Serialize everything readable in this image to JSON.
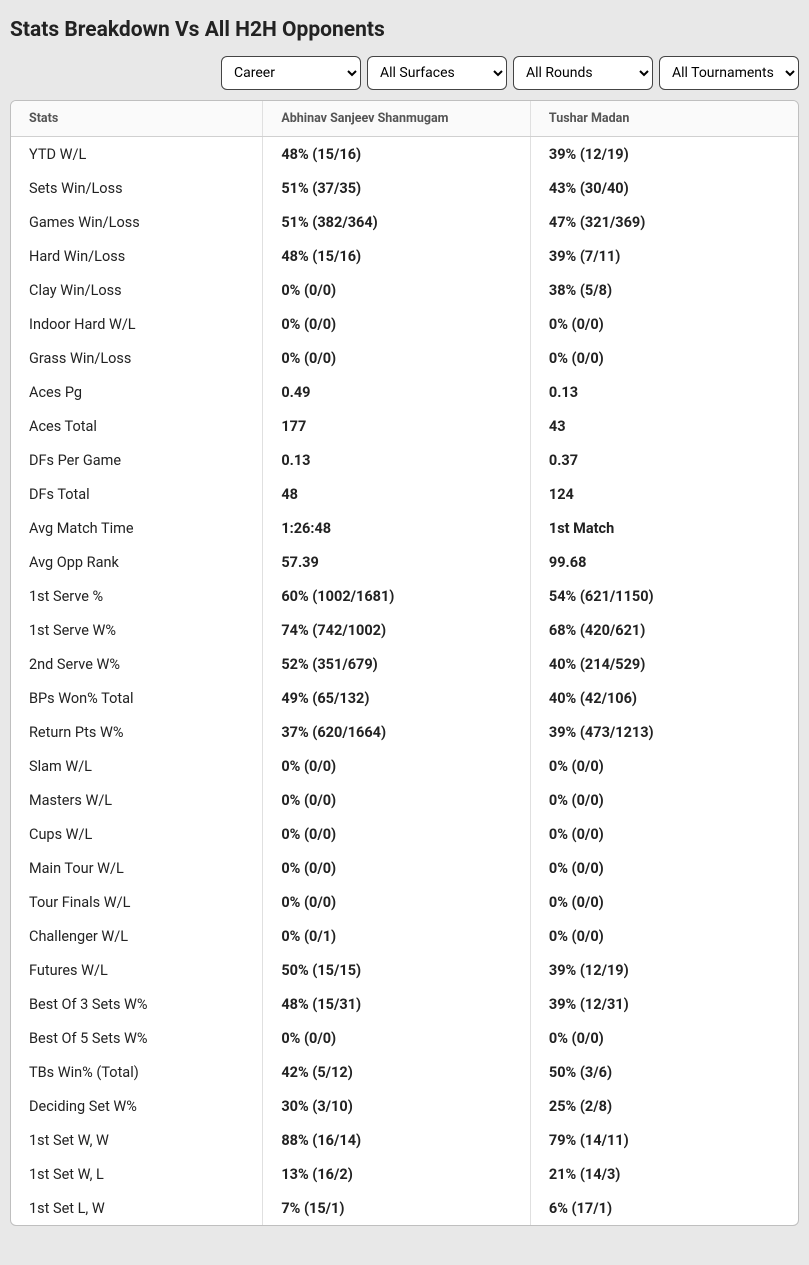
{
  "title": "Stats Breakdown Vs All H2H Opponents",
  "filters": {
    "career": "Career",
    "surfaces": "All Surfaces",
    "rounds": "All Rounds",
    "tournaments": "All Tournaments"
  },
  "headers": {
    "stats": "Stats",
    "player1": "Abhinav Sanjeev Shanmugam",
    "player2": "Tushar Madan"
  },
  "rows": [
    {
      "label": "YTD W/L",
      "p1": "48% (15/16)",
      "p2": "39% (12/19)"
    },
    {
      "label": "Sets Win/Loss",
      "p1": "51% (37/35)",
      "p2": "43% (30/40)"
    },
    {
      "label": "Games Win/Loss",
      "p1": "51% (382/364)",
      "p2": "47% (321/369)"
    },
    {
      "label": "Hard Win/Loss",
      "p1": "48% (15/16)",
      "p2": "39% (7/11)"
    },
    {
      "label": "Clay Win/Loss",
      "p1": "0% (0/0)",
      "p2": "38% (5/8)"
    },
    {
      "label": "Indoor Hard W/L",
      "p1": "0% (0/0)",
      "p2": "0% (0/0)"
    },
    {
      "label": "Grass Win/Loss",
      "p1": "0% (0/0)",
      "p2": "0% (0/0)"
    },
    {
      "label": "Aces Pg",
      "p1": "0.49",
      "p2": "0.13"
    },
    {
      "label": "Aces Total",
      "p1": "177",
      "p2": "43"
    },
    {
      "label": "DFs Per Game",
      "p1": "0.13",
      "p2": "0.37"
    },
    {
      "label": "DFs Total",
      "p1": "48",
      "p2": "124"
    },
    {
      "label": "Avg Match Time",
      "p1": "1:26:48",
      "p2": "1st Match"
    },
    {
      "label": "Avg Opp Rank",
      "p1": "57.39",
      "p2": "99.68"
    },
    {
      "label": "1st Serve %",
      "p1": "60% (1002/1681)",
      "p2": "54% (621/1150)"
    },
    {
      "label": "1st Serve W%",
      "p1": "74% (742/1002)",
      "p2": "68% (420/621)"
    },
    {
      "label": "2nd Serve W%",
      "p1": "52% (351/679)",
      "p2": "40% (214/529)"
    },
    {
      "label": "BPs Won% Total",
      "p1": "49% (65/132)",
      "p2": "40% (42/106)"
    },
    {
      "label": "Return Pts W%",
      "p1": "37% (620/1664)",
      "p2": "39% (473/1213)"
    },
    {
      "label": "Slam W/L",
      "p1": "0% (0/0)",
      "p2": "0% (0/0)"
    },
    {
      "label": "Masters W/L",
      "p1": "0% (0/0)",
      "p2": "0% (0/0)"
    },
    {
      "label": "Cups W/L",
      "p1": "0% (0/0)",
      "p2": "0% (0/0)"
    },
    {
      "label": "Main Tour W/L",
      "p1": "0% (0/0)",
      "p2": "0% (0/0)"
    },
    {
      "label": "Tour Finals W/L",
      "p1": "0% (0/0)",
      "p2": "0% (0/0)"
    },
    {
      "label": "Challenger W/L",
      "p1": "0% (0/1)",
      "p2": "0% (0/0)"
    },
    {
      "label": "Futures W/L",
      "p1": "50% (15/15)",
      "p2": "39% (12/19)"
    },
    {
      "label": "Best Of 3 Sets W%",
      "p1": "48% (15/31)",
      "p2": "39% (12/31)"
    },
    {
      "label": "Best Of 5 Sets W%",
      "p1": "0% (0/0)",
      "p2": "0% (0/0)"
    },
    {
      "label": "TBs Win% (Total)",
      "p1": "42% (5/12)",
      "p2": "50% (3/6)"
    },
    {
      "label": "Deciding Set W%",
      "p1": "30% (3/10)",
      "p2": "25% (2/8)"
    },
    {
      "label": "1st Set W, W",
      "p1": "88% (16/14)",
      "p2": "79% (14/11)"
    },
    {
      "label": "1st Set W, L",
      "p1": "13% (16/2)",
      "p2": "21% (14/3)"
    },
    {
      "label": "1st Set L, W",
      "p1": "7% (15/1)",
      "p2": "6% (17/1)"
    }
  ],
  "colors": {
    "page_bg": "#e8e8e8",
    "card_bg": "#ffffff",
    "border": "#bfbfbf",
    "header_text": "#555555",
    "body_text": "#222222",
    "divider": "#e0e0e0"
  }
}
